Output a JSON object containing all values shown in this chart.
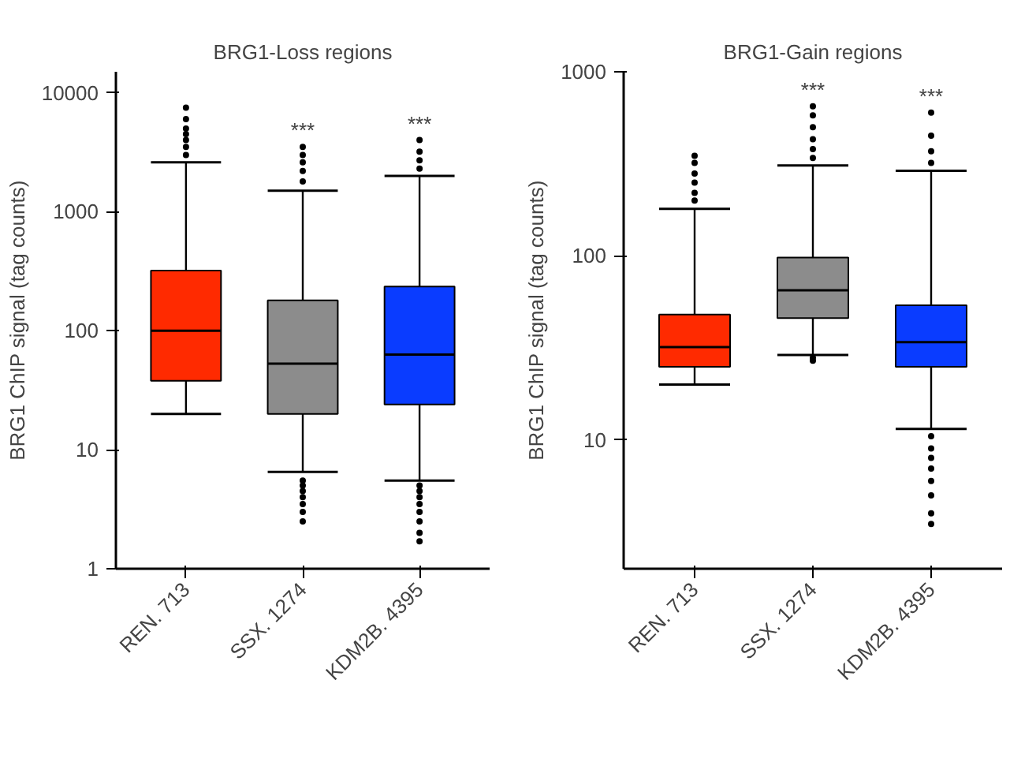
{
  "chart_data": [
    {
      "type": "box",
      "title": "BRG1-Loss regions",
      "ylabel": "BRG1 ChIP signal (tag counts)",
      "log": true,
      "categories": [
        "REN. 713",
        "SSX. 1274",
        "KDM2B. 4395"
      ],
      "colors": [
        "#ff2a00",
        "#8c8c8c",
        "#0a3cff"
      ],
      "ylim": [
        1,
        15000
      ],
      "yticks": [
        1,
        10,
        100,
        1000,
        10000
      ],
      "grid": false,
      "boxes": [
        {
          "low": 20,
          "q1": 38,
          "median": 100,
          "q3": 320,
          "high": 2600,
          "outliers": [
            3000,
            3500,
            4000,
            4500,
            5000,
            6000,
            7500
          ]
        },
        {
          "low": 6.5,
          "q1": 20,
          "median": 53,
          "q3": 180,
          "high": 1500,
          "outliers": [
            5.5,
            5,
            4.5,
            4,
            3.5,
            3,
            2.5,
            1800,
            2200,
            2600,
            3000,
            3500
          ]
        },
        {
          "low": 5.5,
          "q1": 24,
          "median": 63,
          "q3": 235,
          "high": 2000,
          "outliers": [
            5,
            4.5,
            4,
            3.5,
            3,
            2.5,
            2,
            1.7,
            2300,
            2700,
            3200,
            4000
          ]
        }
      ],
      "annotations": [
        "***",
        "***"
      ]
    },
    {
      "type": "box",
      "title": "BRG1-Gain regions",
      "ylabel": "BRG1 ChIP signal (tag counts)",
      "log": true,
      "categories": [
        "REN. 713",
        "SSX. 1274",
        "KDM2B. 4395"
      ],
      "colors": [
        "#ff2a00",
        "#8c8c8c",
        "#0a3cff"
      ],
      "ylim": [
        2,
        1000
      ],
      "yticks": [
        10,
        100,
        1000
      ],
      "grid": false,
      "boxes": [
        {
          "low": 20,
          "q1": 25,
          "median": 32,
          "q3": 48,
          "high": 180,
          "outliers": [
            200,
            220,
            250,
            280,
            320,
            350
          ]
        },
        {
          "low": 29,
          "q1": 46,
          "median": 65,
          "q3": 98,
          "high": 310,
          "outliers": [
            28,
            27,
            340,
            380,
            430,
            500,
            580,
            650
          ]
        },
        {
          "low": 11.5,
          "q1": 25,
          "median": 34,
          "q3": 54,
          "high": 290,
          "outliers": [
            10.5,
            9,
            8,
            7,
            6,
            5,
            4,
            3.5,
            320,
            370,
            450,
            600
          ]
        }
      ],
      "annotations": [
        "***",
        "***"
      ]
    }
  ]
}
